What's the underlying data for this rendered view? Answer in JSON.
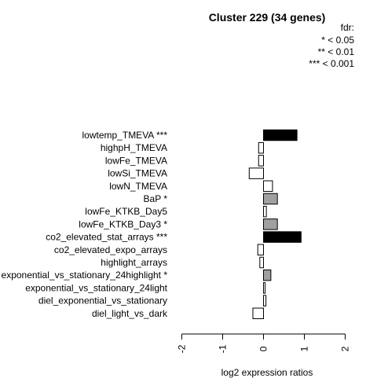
{
  "chart_data": {
    "type": "bar",
    "orientation": "horizontal",
    "title": "Cluster 229 (34 genes)",
    "xlabel": "log2 expression ratios",
    "ylabel": "",
    "xlim": [
      -2,
      2
    ],
    "xticks": [
      "-2",
      "-1",
      "0",
      "1",
      "2"
    ],
    "grid": false,
    "legend": {
      "placement": "top-right",
      "title": "fdr:",
      "entries": [
        "* < 0.05",
        "** < 0.01",
        "*** < 0.001"
      ]
    },
    "categories": [
      "lowtemp_TMEVA ***",
      "highpH_TMEVA",
      "lowFe_TMEVA",
      "lowSi_TMEVA",
      "lowN_TMEVA",
      "BaP *",
      "lowFe_KTKB_Day5",
      "lowFe_KTKB_Day3 *",
      "co2_elevated_stat_arrays ***",
      "co2_elevated_expo_arrays",
      "highlight_arrays",
      "exponential_vs_stationary_24highlight *",
      "exponential_vs_stationary_24light",
      "diel_exponential_vs_stationary",
      "diel_light_vs_dark"
    ],
    "values": [
      0.82,
      -0.12,
      -0.12,
      -0.35,
      0.22,
      0.34,
      0.07,
      0.34,
      0.92,
      -0.14,
      -0.09,
      0.18,
      0.04,
      0.06,
      -0.26
    ],
    "significance": [
      3,
      0,
      0,
      0,
      0,
      1,
      0,
      1,
      3,
      0,
      0,
      1,
      0,
      0,
      0
    ],
    "colors": {
      "not_significant": "#ffffff",
      "fdr_0.05": "#a0a0a0",
      "fdr_0.01": "#606060",
      "fdr_0.001": "#000000",
      "outline": "#000000"
    }
  }
}
